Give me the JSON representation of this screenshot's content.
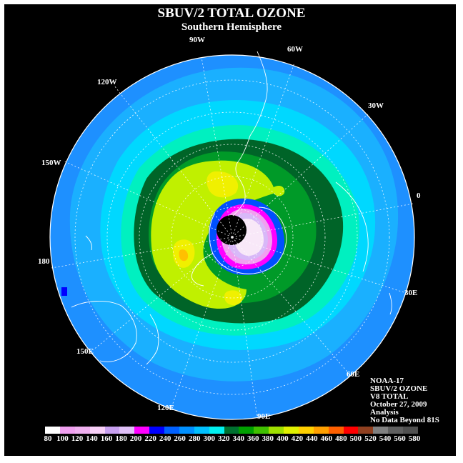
{
  "header": {
    "title": "SBUV/2 TOTAL OZONE",
    "subtitle": "Southern Hemisphere"
  },
  "longitude_labels": [
    "90W",
    "60W",
    "30W",
    "0",
    "30E",
    "60E",
    "90E",
    "120E",
    "150E",
    "180",
    "150W",
    "120W"
  ],
  "info": {
    "lines": [
      "NOAA-17",
      "SBUV/2 OZONE",
      "V8 TOTAL",
      "October 27, 2009",
      "Analysis",
      "No Data Beyond 81S"
    ]
  },
  "colorbar": {
    "ticks": [
      "80",
      "100",
      "120",
      "140",
      "160",
      "180",
      "200",
      "220",
      "240",
      "260",
      "280",
      "300",
      "320",
      "340",
      "360",
      "380",
      "400",
      "420",
      "440",
      "460",
      "480",
      "500",
      "520",
      "540",
      "560",
      "580"
    ],
    "colors": [
      "#ffffff",
      "#f0a0f0",
      "#f0b0f0",
      "#f8d0f8",
      "#c8a0f0",
      "#e0c0f8",
      "#ff00ff",
      "#0000ff",
      "#0060ff",
      "#0090ff",
      "#00c0ff",
      "#00f0f0",
      "#007030",
      "#00a000",
      "#40c000",
      "#a0e000",
      "#e0f000",
      "#ffd000",
      "#ffa000",
      "#ff6000",
      "#ff0000",
      "#904020",
      "#808080",
      "#606060",
      "#505050"
    ]
  },
  "map_colors": {
    "background": "#000000",
    "outer": "#1e90ff",
    "band1": "#1ab0ff",
    "band2": "#00d8ff",
    "band3": "#00f0c0",
    "green_dark": "#006428",
    "green": "#009a28",
    "yellow_green": "#c0f000",
    "yellow": "#f0f000",
    "orange": "#ffc000",
    "vortex_blue": "#0050ff",
    "vortex_magenta": "#ff00ff",
    "vortex_pink": "#f0a0f0",
    "vortex_lilac": "#d8b8f8",
    "vortex_center": "#f8e8f8"
  }
}
